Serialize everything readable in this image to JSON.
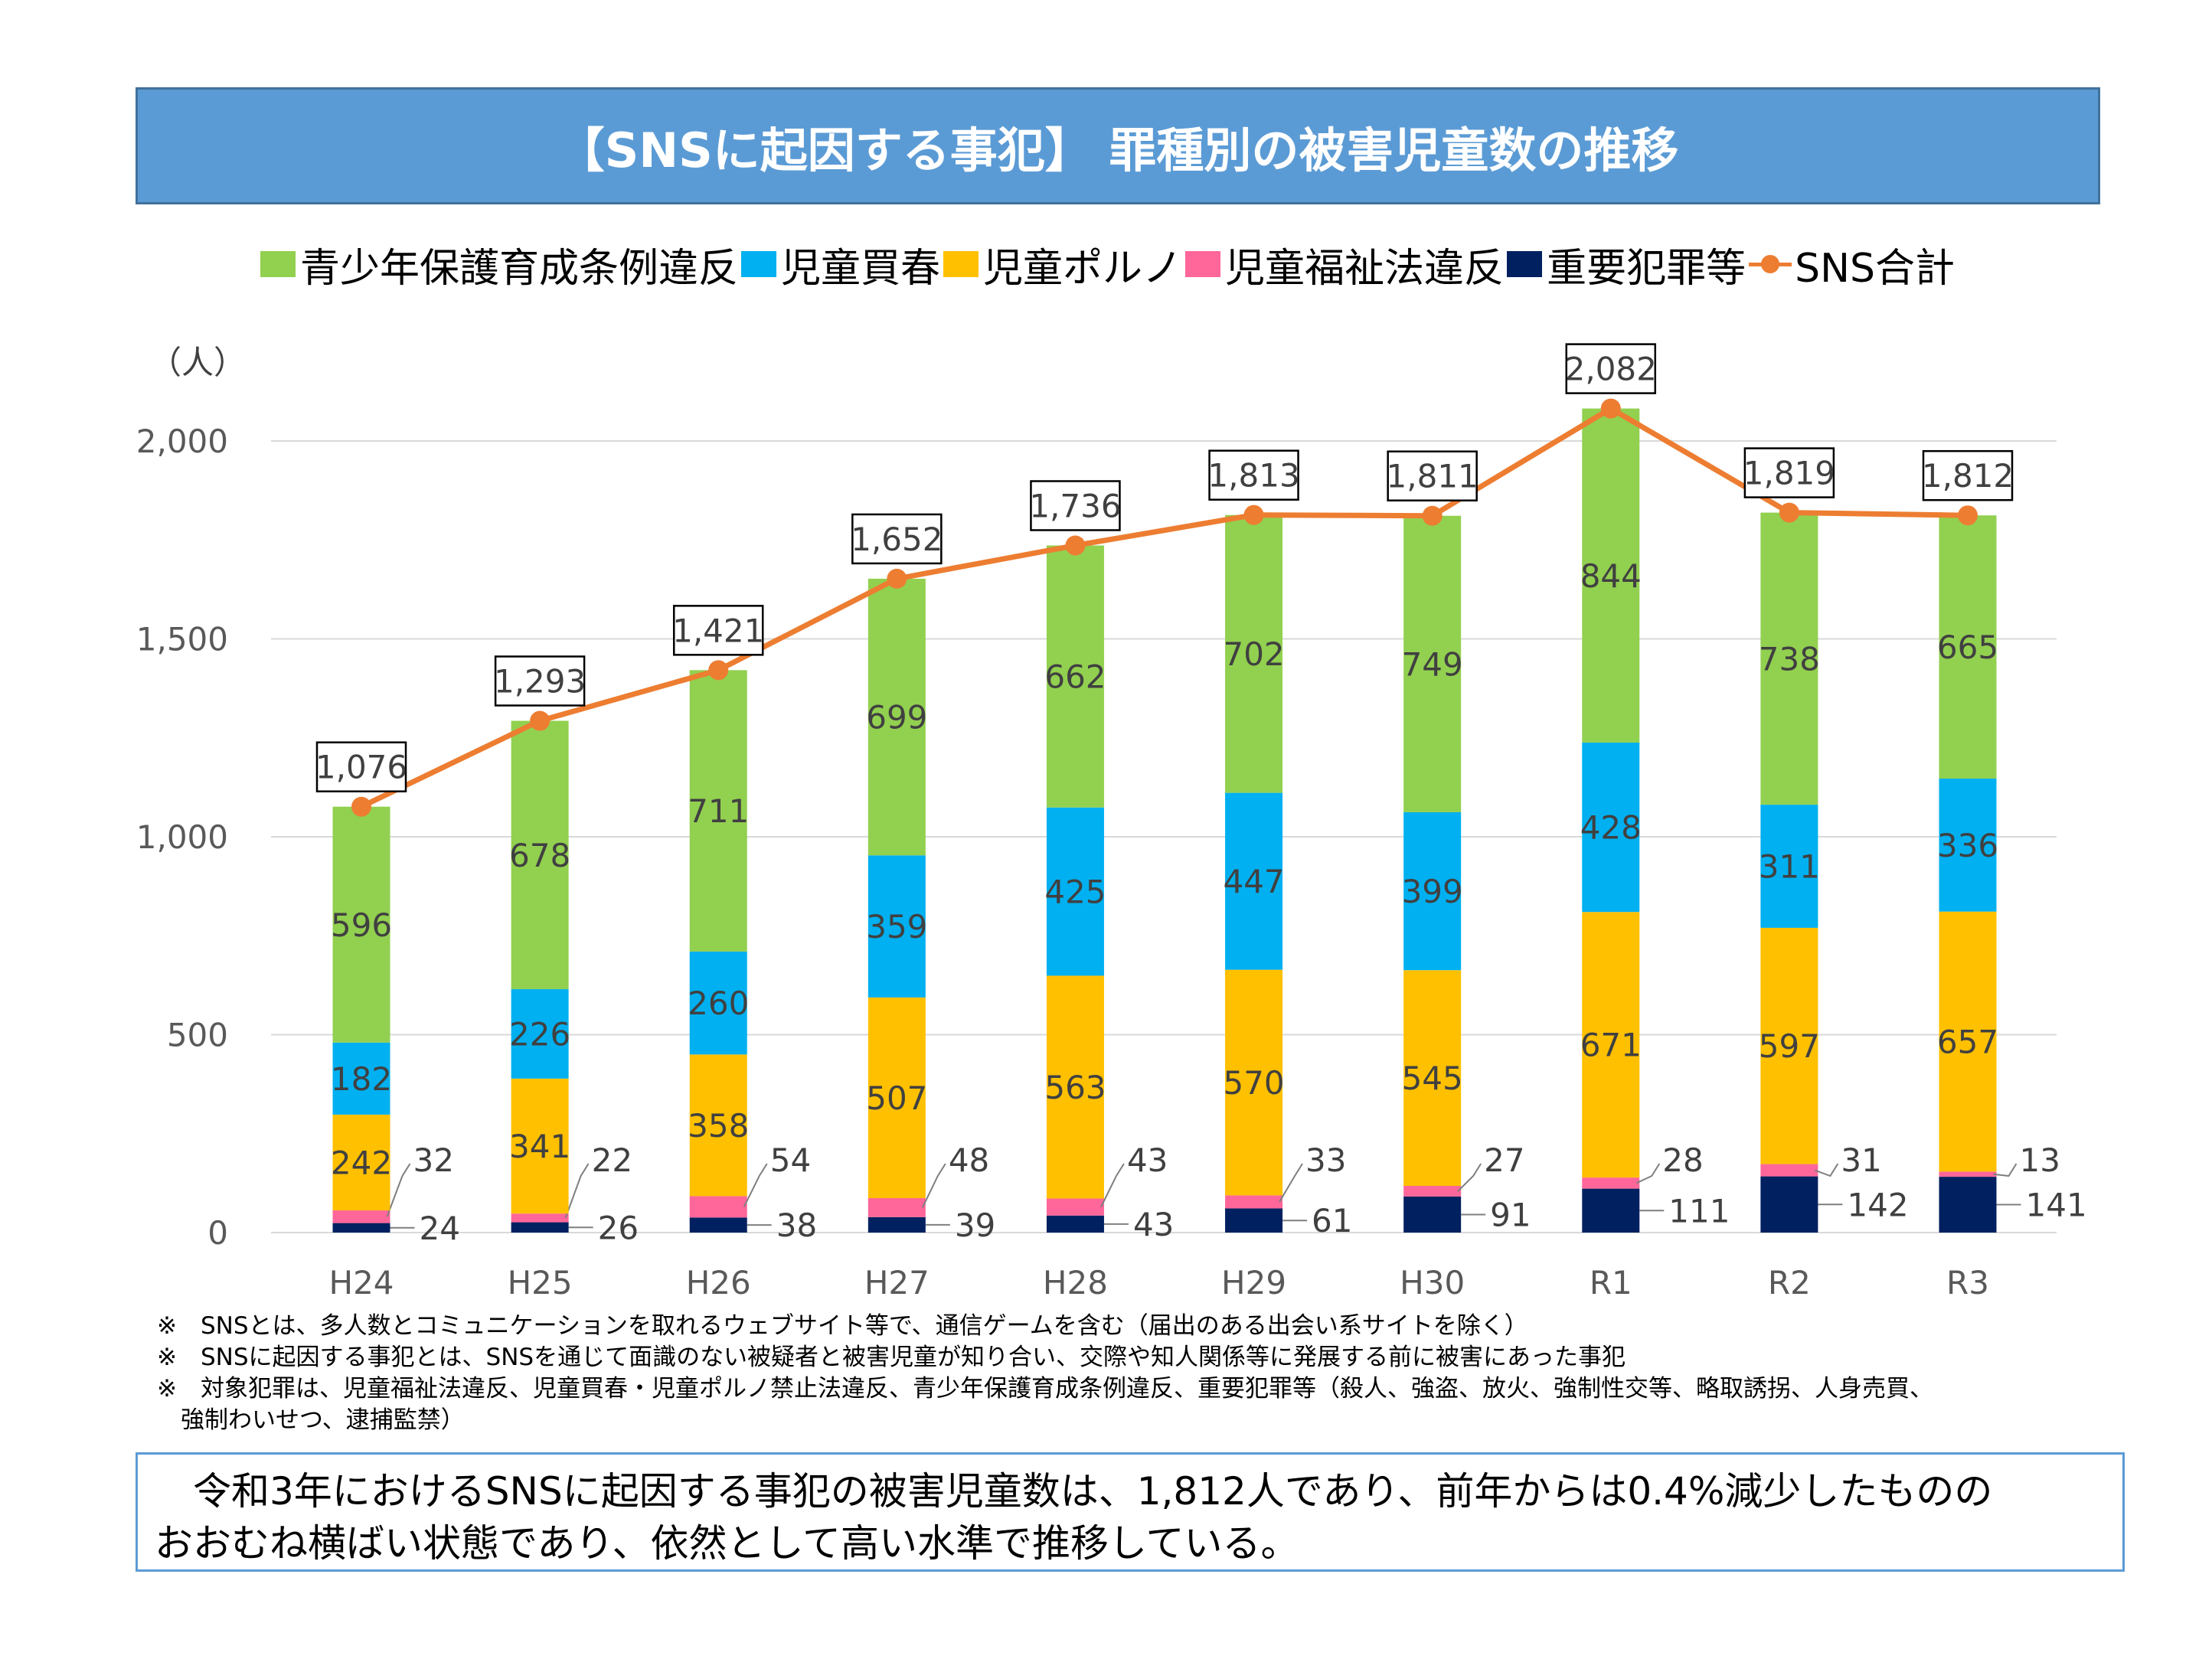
{
  "title": "【SNSに起因する事犯】 罪種別の被害児童数の推移",
  "chart_data": {
    "type": "bar",
    "stacked": true,
    "title": "【SNSに起因する事犯】 罪種別の被害児童数の推移",
    "ylabel": "（人）",
    "ylim": [
      0,
      2000
    ],
    "yticks": [
      "0",
      "500",
      "1,000",
      "1,500",
      "2,000"
    ],
    "ytick_values": [
      0,
      500,
      1000,
      1500,
      2000
    ],
    "grid": true,
    "legend_position": "top",
    "categories": [
      "H24",
      "H25",
      "H26",
      "H27",
      "H28",
      "H29",
      "H30",
      "R1",
      "R2",
      "R3"
    ],
    "series": [
      {
        "name": "重要犯罪等",
        "color": "#002060",
        "values": [
          24,
          26,
          38,
          39,
          43,
          61,
          91,
          111,
          142,
          141
        ]
      },
      {
        "name": "児童福祉法違反",
        "color": "#ff6699",
        "values": [
          32,
          22,
          54,
          48,
          43,
          33,
          27,
          28,
          31,
          13
        ]
      },
      {
        "name": "児童ポルノ",
        "color": "#ffc000",
        "values": [
          242,
          341,
          358,
          507,
          563,
          570,
          545,
          671,
          597,
          657
        ]
      },
      {
        "name": "児童買春",
        "color": "#00b0f0",
        "values": [
          182,
          226,
          260,
          359,
          425,
          447,
          399,
          428,
          311,
          336
        ]
      },
      {
        "name": "青少年保護育成条例違反",
        "color": "#92d050",
        "values": [
          596,
          678,
          711,
          699,
          662,
          702,
          749,
          844,
          738,
          665
        ]
      }
    ],
    "line": {
      "name": "SNS合計",
      "color": "#ed7d31",
      "values": [
        1076,
        1293,
        1421,
        1652,
        1736,
        1813,
        1811,
        2082,
        1819,
        1812
      ],
      "labels": [
        "1,076",
        "1,293",
        "1,421",
        "1,652",
        "1,736",
        "1,813",
        "1,811",
        "2,082",
        "1,819",
        "1,812"
      ]
    },
    "legend_order": [
      "青少年保護育成条例違反",
      "児童買春",
      "児童ポルノ",
      "児童福祉法違反",
      "重要犯罪等",
      "SNS合計"
    ]
  },
  "notes": [
    "※　SNSとは、多人数とコミュニケーションを取れるウェブサイト等で、通信ゲームを含む（届出のある出会い系サイトを除く）",
    "※　SNSに起因する事犯とは、SNSを通じて面識のない被疑者と被害児童が知り合い、交際や知人関係等に発展する前に被害にあった事犯",
    "※　対象犯罪は、児童福祉法違反、児童買春・児童ポルノ禁止法違反、青少年保護育成条例違反、重要犯罪等（殺人、強盗、放火、強制性交等、略取誘拐、人身売買、",
    "　強制わいせつ、逮捕監禁）"
  ],
  "summary": [
    "　令和3年におけるSNSに起因する事犯の被害児童数は、1,812人であり、前年からは0.4%減少したものの",
    "おおむね横ばい状態であり、依然として高い水準で推移している。"
  ]
}
